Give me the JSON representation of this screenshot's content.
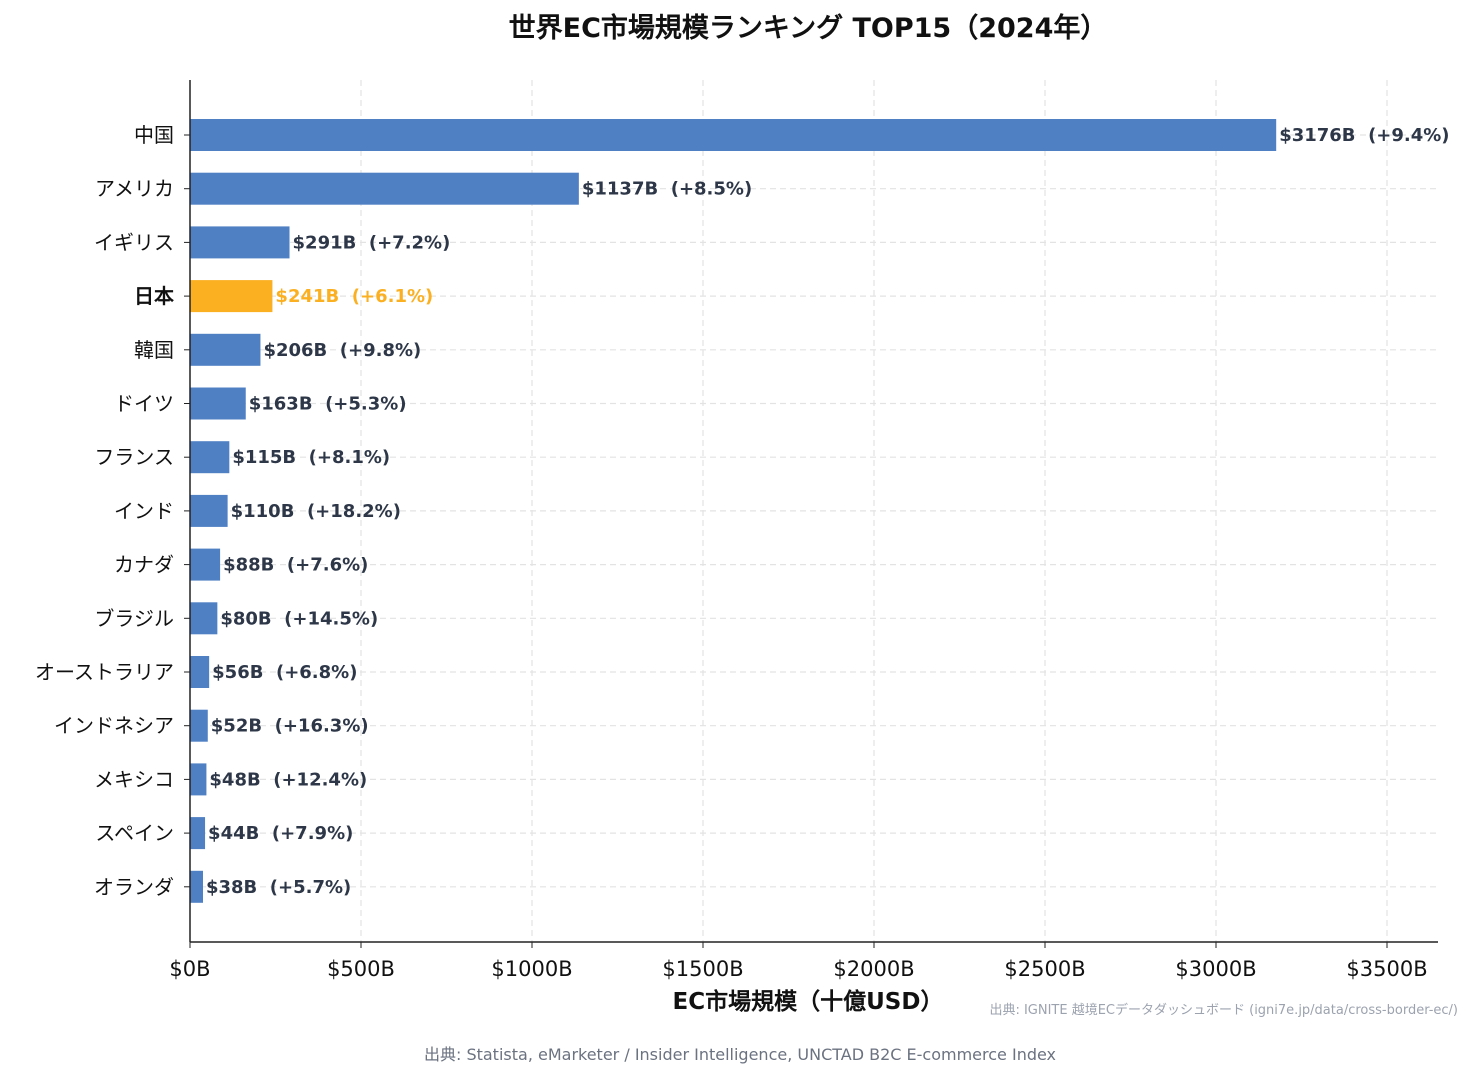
{
  "chart_data": {
    "type": "bar",
    "orientation": "horizontal",
    "title": "世界EC市場規模ランキング TOP15（2024年）",
    "xlabel": "EC市場規模（十億USD）",
    "ylabel": "",
    "xlim": [
      0,
      3650
    ],
    "xticks": [
      0,
      500,
      1000,
      1500,
      2000,
      2500,
      3000,
      3500
    ],
    "xtick_labels": [
      "$0B",
      "$500B",
      "$1000B",
      "$1500B",
      "$2000B",
      "$2500B",
      "$3000B",
      "$3500B"
    ],
    "grid": true,
    "categories": [
      "中国",
      "アメリカ",
      "イギリス",
      "日本",
      "韓国",
      "ドイツ",
      "フランス",
      "インド",
      "カナダ",
      "ブラジル",
      "オーストラリア",
      "インドネシア",
      "メキシコ",
      "スペイン",
      "オランダ"
    ],
    "values": [
      3176,
      1137,
      291,
      241,
      206,
      163,
      115,
      110,
      88,
      80,
      56,
      52,
      48,
      44,
      38
    ],
    "growth": [
      "+9.4%",
      "+8.5%",
      "+7.2%",
      "+6.1%",
      "+9.8%",
      "+5.3%",
      "+8.1%",
      "+18.2%",
      "+7.6%",
      "+14.5%",
      "+6.8%",
      "+16.3%",
      "+12.4%",
      "+7.9%",
      "+5.7%"
    ],
    "data_labels": [
      "$3176B  (+9.4%)",
      "$1137B  (+8.5%)",
      "$291B  (+7.2%)",
      "$241B  (+6.1%)",
      "$206B  (+9.8%)",
      "$163B  (+5.3%)",
      "$115B  (+8.1%)",
      "$110B  (+18.2%)",
      "$88B  (+7.6%)",
      "$80B  (+14.5%)",
      "$56B  (+6.8%)",
      "$52B  (+16.3%)",
      "$48B  (+12.4%)",
      "$44B  (+7.9%)",
      "$38B  (+5.7%)"
    ],
    "highlight": "日本",
    "colors": {
      "bar": "#5080c4",
      "highlight": "#fbb022",
      "label": "#2d3748"
    }
  },
  "source": "出典: Statista, eMarketer / Insider Intelligence, UNCTAD B2C E-commerce Index",
  "watermark": "出典: IGNITE 越境ECデータダッシュボード (igni7e.jp/data/cross-border-ec/)"
}
